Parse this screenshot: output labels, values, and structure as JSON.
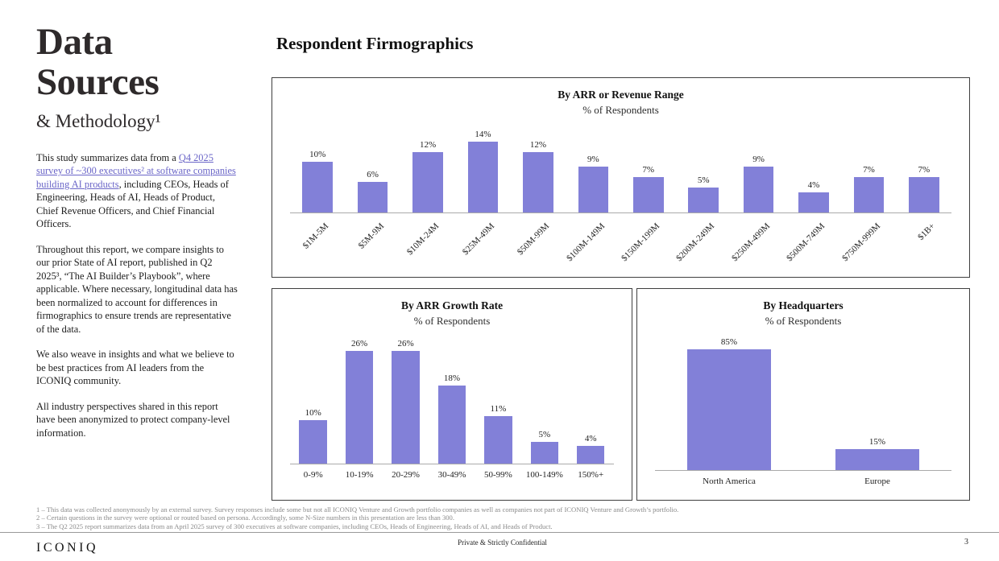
{
  "sidebar": {
    "title_line1": "Data",
    "title_line2": "Sources",
    "subtitle": "& Methodology¹",
    "para1_prefix": "This study summarizes data from a ",
    "para1_link": "Q4 2025 survey of ~300 executives² at software companies building AI products",
    "para1_suffix": ", including CEOs, Heads of Engineering, Heads of AI, Heads of Product, Chief Revenue Officers, and Chief Financial Officers.",
    "para2": "Throughout this report, we compare insights to our prior State of AI report, published in Q2 2025³, “The AI Builder’s Playbook”, where applicable. Where necessary, longitudinal data has been normalized to account for differences in firmographics to ensure trends are representative of the data.",
    "para3": "We also weave in insights and what we believe to be best practices from AI leaders from the ICONIQ community.",
    "para4": "All industry perspectives shared in this report have been anonymized to protect company-level information."
  },
  "main": {
    "header": "Respondent Firmographics"
  },
  "chart_data": [
    {
      "type": "bar",
      "title": "By ARR or Revenue Range",
      "subtitle": "% of Respondents",
      "categories": [
        "$1M-5M",
        "$5M-9M",
        "$10M-24M",
        "$25M-49M",
        "$50M-99M",
        "$100M-149M",
        "$150M-199M",
        "$200M-249M",
        "$250M-499M",
        "$500M-749M",
        "$750M-999M",
        "$1B+"
      ],
      "values": [
        10,
        6,
        12,
        14,
        12,
        9,
        7,
        5,
        9,
        4,
        7,
        7
      ],
      "value_suffix": "%",
      "bar_color": "#8280d8",
      "xlabel": "",
      "ylabel": "",
      "ylim": [
        0,
        16
      ],
      "grid": false,
      "x_labels_rotated": true
    },
    {
      "type": "bar",
      "title": "By ARR Growth Rate",
      "subtitle": "% of Respondents",
      "categories": [
        "0-9%",
        "10-19%",
        "20-29%",
        "30-49%",
        "50-99%",
        "100-149%",
        "150%+"
      ],
      "values": [
        10,
        26,
        26,
        18,
        11,
        5,
        4
      ],
      "value_suffix": "%",
      "bar_color": "#8280d8",
      "xlabel": "",
      "ylabel": "",
      "ylim": [
        0,
        30
      ],
      "grid": false,
      "x_labels_rotated": false
    },
    {
      "type": "bar",
      "title": "By Headquarters",
      "subtitle": "% of Respondents",
      "categories": [
        "North America",
        "Europe"
      ],
      "values": [
        85,
        15
      ],
      "value_suffix": "%",
      "bar_color": "#8280d8",
      "xlabel": "",
      "ylabel": "",
      "ylim": [
        0,
        100
      ],
      "grid": false,
      "x_labels_rotated": false
    }
  ],
  "footnotes": [
    "1 – This data was collected anonymously by an external survey. Survey responses include some but not all ICONIQ Venture and Growth portfolio companies as well as companies not part of ICONIQ Venture and Growth’s portfolio.",
    "2 – Certain questions in the survey were optional or routed based on persona. Accordingly, some N-Size numbers in this presentation are less than 300.",
    "3 – The Q2 2025 report summarizes data from an April 2025 survey of 300 executives at software companies, including CEOs, Heads of Engineering, Heads of AI, and Heads of Product."
  ],
  "footer": {
    "logo": "ICONIQ",
    "confidential": "Private & Strictly Confidential",
    "page_number": "3"
  },
  "colors": {
    "bar": "#8280d8",
    "accent_text": "#6b66c8"
  }
}
